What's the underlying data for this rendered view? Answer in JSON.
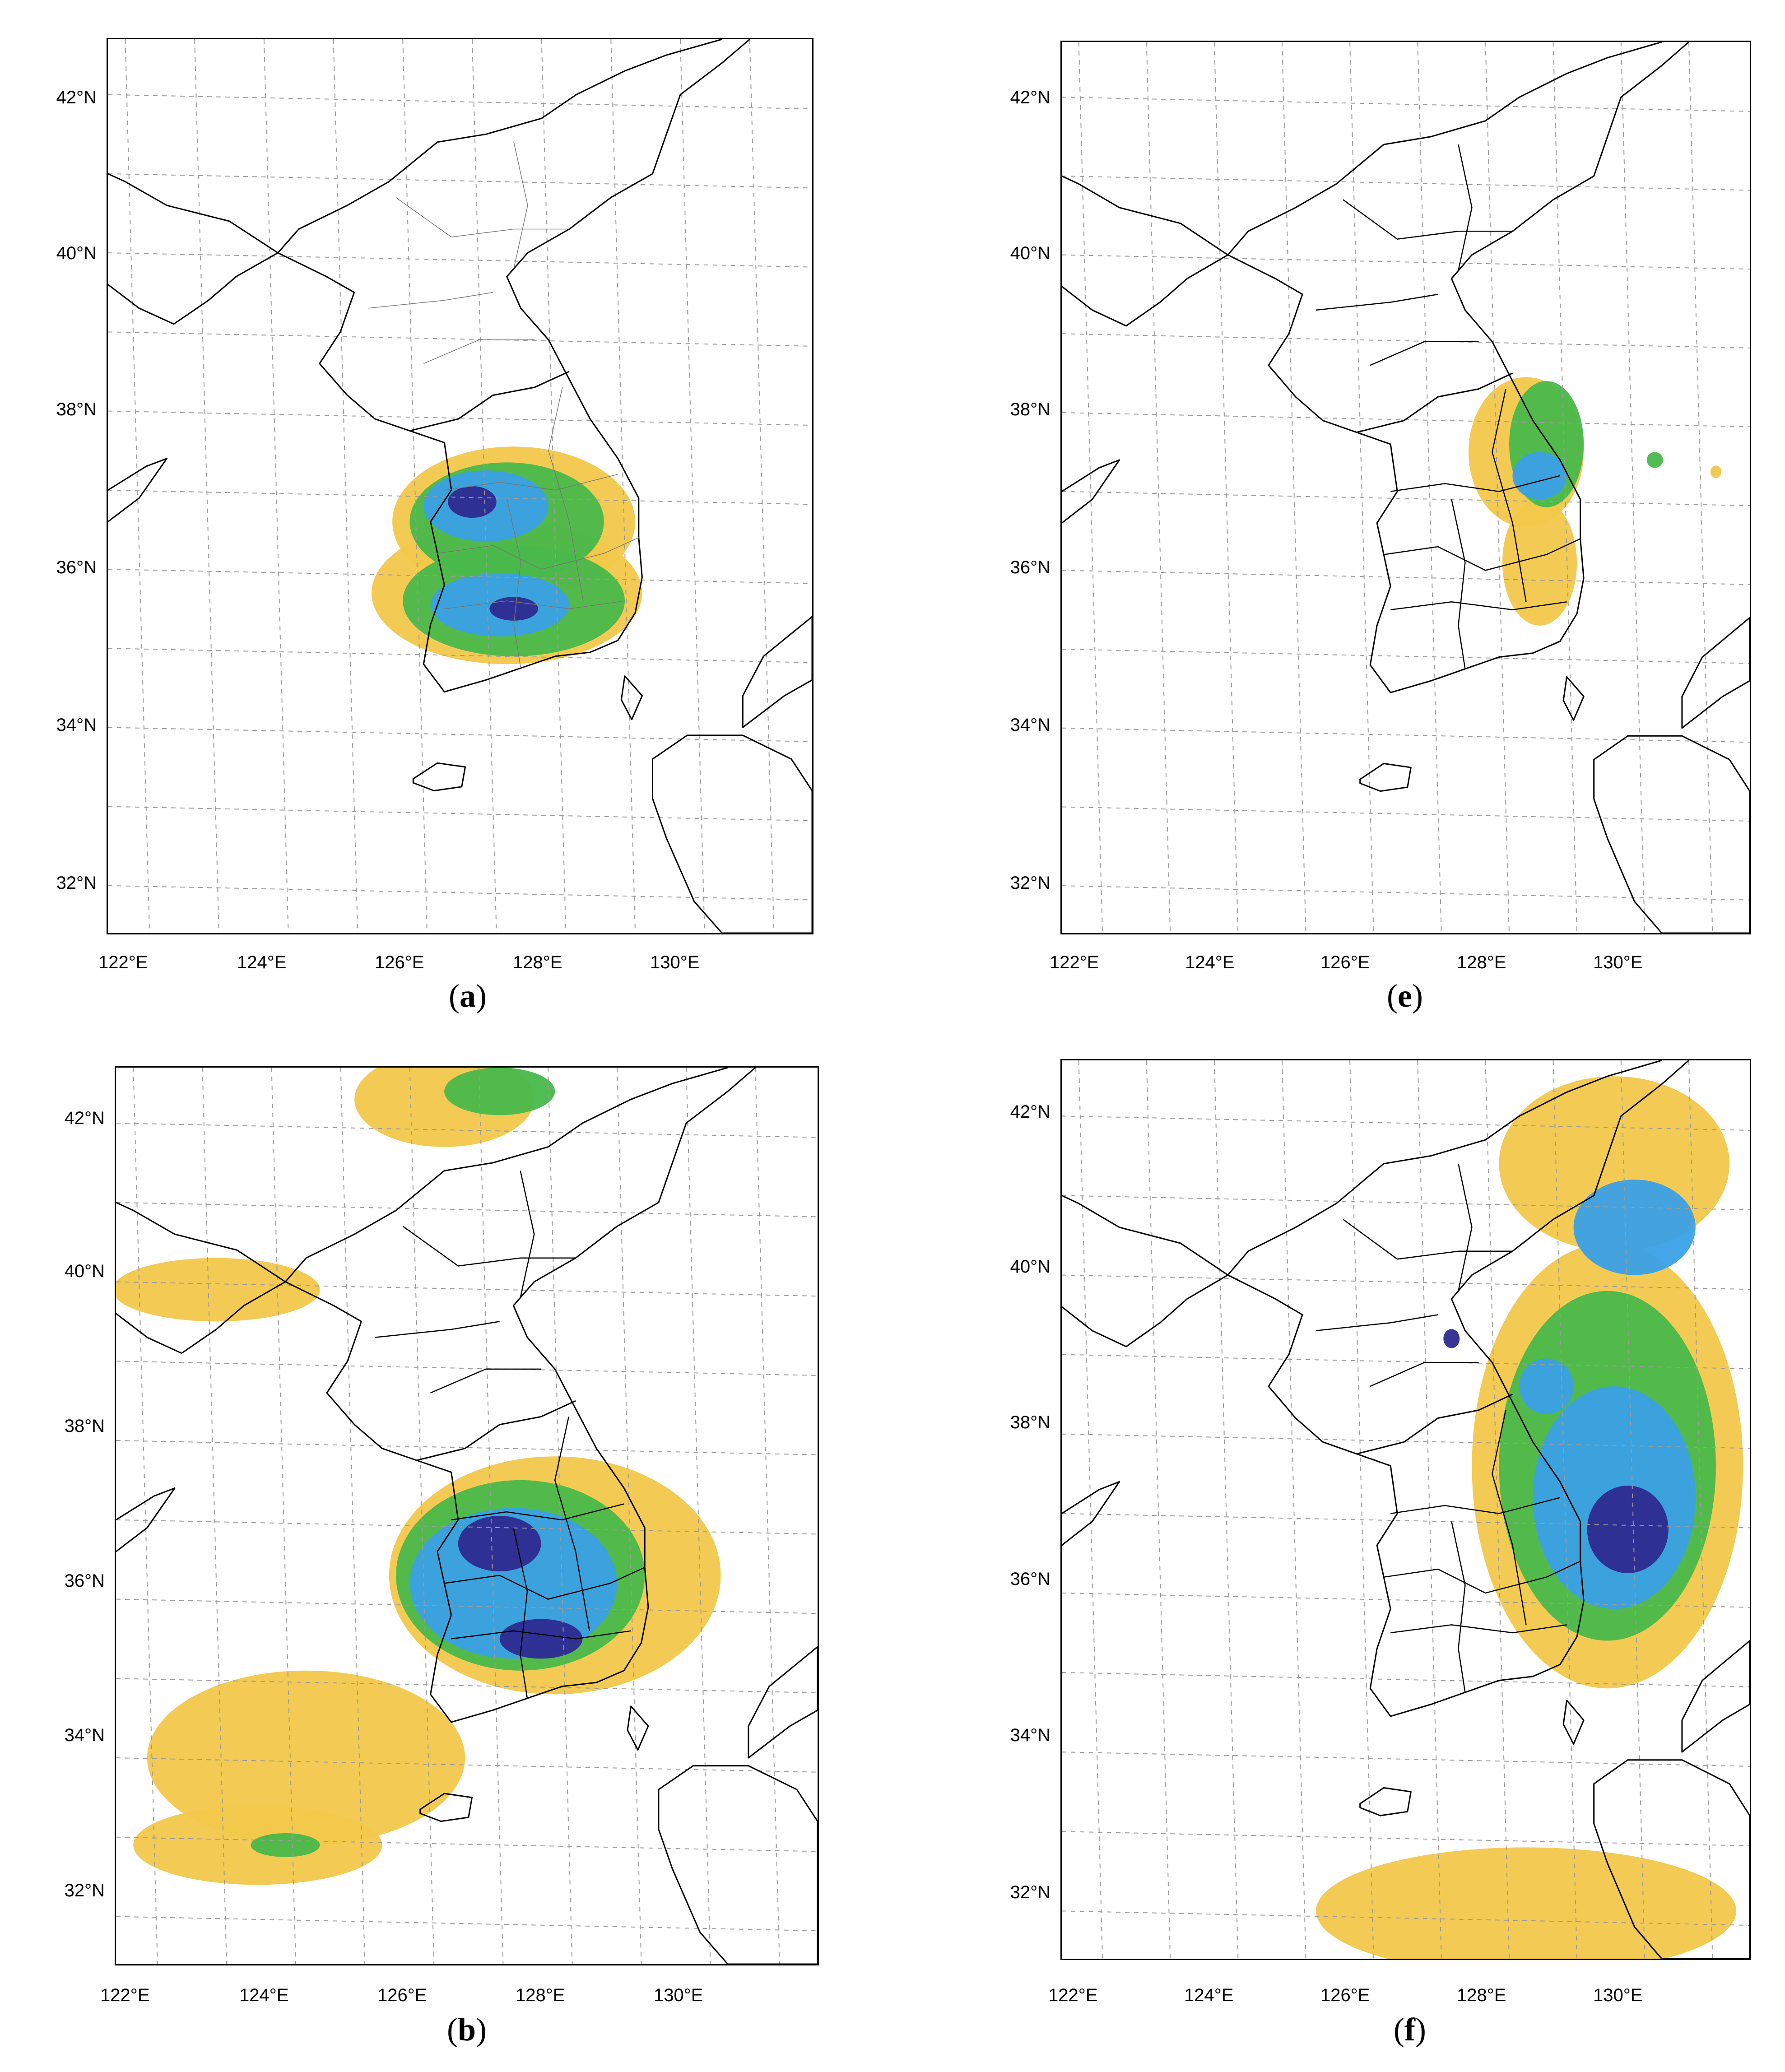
{
  "figure": {
    "panels": [
      {
        "id": "a",
        "caption_open": "(",
        "caption_letter": "a",
        "caption_close": ")",
        "lat_labels": [
          "42°N",
          "40°N",
          "38°N",
          "36°N",
          "34°N",
          "32°N"
        ],
        "lon_labels": [
          "122°E",
          "124°E",
          "126°E",
          "128°E",
          "130°E"
        ],
        "provincial_boundaries": true,
        "precip_pattern": "south-korea-band",
        "colors": {
          "light": "#f2c84b",
          "moderate": "#48b84a",
          "heavy": "#3aa0e6",
          "extreme": "#2e2a8f"
        }
      },
      {
        "id": "e",
        "caption_open": "(",
        "caption_letter": "e",
        "caption_close": ")",
        "lat_labels": [
          "42°N",
          "40°N",
          "38°N",
          "36°N",
          "34°N",
          "32°N"
        ],
        "lon_labels": [
          "122°E",
          "124°E",
          "126°E",
          "128°E",
          "130°E"
        ],
        "provincial_boundaries": false,
        "precip_pattern": "east-coast-band",
        "colors": {
          "light": "#f2c84b",
          "moderate": "#48b84a",
          "heavy": "#3aa0e6",
          "extreme": "#2e2a8f"
        }
      },
      {
        "id": "b",
        "caption_open": "(",
        "caption_letter": "b",
        "caption_close": ")",
        "lat_labels": [
          "42°N",
          "40°N",
          "38°N",
          "36°N",
          "34°N",
          "32°N"
        ],
        "lon_labels": [
          "122°E",
          "124°E",
          "126°E",
          "128°E",
          "130°E"
        ],
        "provincial_boundaries": false,
        "precip_pattern": "broad-southwest",
        "colors": {
          "light": "#f2c84b",
          "moderate": "#48b84a",
          "heavy": "#3aa0e6",
          "extreme": "#2e2a8f"
        }
      },
      {
        "id": "f",
        "caption_open": "(",
        "caption_letter": "f",
        "caption_close": ")",
        "lat_labels": [
          "42°N",
          "40°N",
          "38°N",
          "36°N",
          "34°N",
          "32°N"
        ],
        "lon_labels": [
          "122°E",
          "124°E",
          "126°E",
          "128°E",
          "130°E"
        ],
        "provincial_boundaries": false,
        "precip_pattern": "east-sea-swath",
        "colors": {
          "light": "#f2c84b",
          "moderate": "#48b84a",
          "heavy": "#3aa0e6",
          "extreme": "#2e2a8f"
        }
      }
    ]
  }
}
